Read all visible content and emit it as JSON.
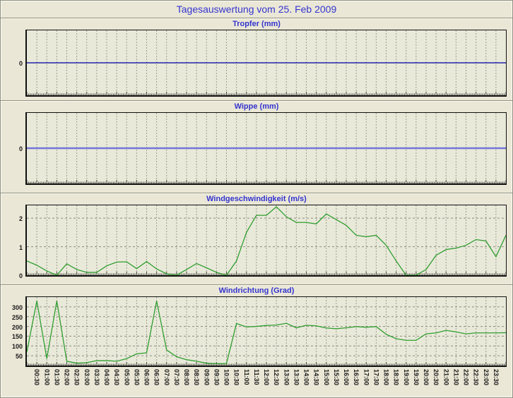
{
  "page": {
    "title": "Tagesauswertung vom 25. Feb 2009"
  },
  "style": {
    "page_bg": "#eae7d6",
    "plot_bg": "#e9e9da",
    "title_blue": "#3434cf",
    "grid_vertical": "#9e9e90",
    "grid_horizontal": "#8c8c7e",
    "axis_black": "#111111",
    "tick_color": "#44443c",
    "label_color": "#1a1a1a"
  },
  "x_axis": {
    "start": "00:00",
    "end": "24:00",
    "interval_minutes": 30,
    "labels": [
      "00:30",
      "01:00",
      "01:30",
      "02:00",
      "02:30",
      "03:00",
      "03:30",
      "04:00",
      "04:30",
      "05:00",
      "05:30",
      "06:00",
      "06:30",
      "07:00",
      "07:30",
      "08:00",
      "08:30",
      "09:00",
      "09:30",
      "10:00",
      "10:30",
      "11:00",
      "11:30",
      "12:00",
      "12:30",
      "13:00",
      "13:30",
      "14:00",
      "14:30",
      "15:00",
      "15:30",
      "16:00",
      "16:30",
      "17:00",
      "17:30",
      "18:00",
      "18:30",
      "19:00",
      "19:30",
      "20:00",
      "20:30",
      "21:00",
      "21:30",
      "22:00",
      "22:30",
      "23:00",
      "23:30"
    ]
  },
  "chart_data": [
    {
      "type": "line",
      "title": "Tropfer (mm)",
      "ylabel": "mm",
      "ylim": [
        -1,
        1
      ],
      "yticks": [
        {
          "v": 0,
          "label": "0",
          "grid": false
        }
      ],
      "constant_value": 0,
      "values": [],
      "line_color": "#2323a8",
      "line_width": 1.6,
      "note": "flat zero line all day"
    },
    {
      "type": "line",
      "title": "Wippe (mm)",
      "ylabel": "mm",
      "ylim": [
        -1,
        1
      ],
      "yticks": [
        {
          "v": 0,
          "label": "0",
          "grid": false
        }
      ],
      "constant_value": 0,
      "values": [],
      "line_color": "#7474d8",
      "line_width": 2.4,
      "note": "flat zero line all day"
    },
    {
      "type": "line",
      "title": "Windgeschwindigkeit (m/s)",
      "ylabel": "m/s",
      "ylim": [
        0,
        2.45
      ],
      "yticks": [
        {
          "v": 0,
          "label": "0",
          "grid": false
        },
        {
          "v": 1,
          "label": "1",
          "grid": true
        },
        {
          "v": 2,
          "label": "2",
          "grid": true
        }
      ],
      "values": [
        0.5,
        0.35,
        0.15,
        0.0,
        0.4,
        0.2,
        0.1,
        0.1,
        0.33,
        0.46,
        0.47,
        0.23,
        0.48,
        0.22,
        0.05,
        0.0,
        0.2,
        0.41,
        0.26,
        0.1,
        0.0,
        0.5,
        1.5,
        2.1,
        2.1,
        2.4,
        2.05,
        1.85,
        1.85,
        1.8,
        2.15,
        1.95,
        1.75,
        1.4,
        1.35,
        1.4,
        1.05,
        0.5,
        0.0,
        0.0,
        0.2,
        0.7,
        0.9,
        0.95,
        1.05,
        1.25,
        1.2,
        0.65,
        1.4
      ],
      "line_color": "#2f9e2f",
      "line_width": 1.3
    },
    {
      "type": "line",
      "title": "Windrichtung (Grad)",
      "ylabel": "Grad",
      "ylim": [
        0,
        350
      ],
      "yticks": [
        {
          "v": 50,
          "label": "50",
          "grid": true
        },
        {
          "v": 100,
          "label": "100",
          "grid": true
        },
        {
          "v": 150,
          "label": "150",
          "grid": true
        },
        {
          "v": 200,
          "label": "200",
          "grid": true
        },
        {
          "v": 250,
          "label": "250",
          "grid": true
        },
        {
          "v": 300,
          "label": "300",
          "grid": true
        }
      ],
      "values": [
        70,
        330,
        35,
        330,
        22,
        12,
        15,
        25,
        25,
        22,
        35,
        60,
        65,
        330,
        80,
        45,
        30,
        22,
        12,
        10,
        10,
        215,
        197,
        200,
        205,
        207,
        216,
        193,
        206,
        203,
        192,
        188,
        193,
        199,
        196,
        199,
        160,
        137,
        129,
        129,
        162,
        167,
        180,
        172,
        162,
        167,
        167,
        167,
        168
      ],
      "line_color": "#2f9e2f",
      "line_width": 1.3
    }
  ]
}
